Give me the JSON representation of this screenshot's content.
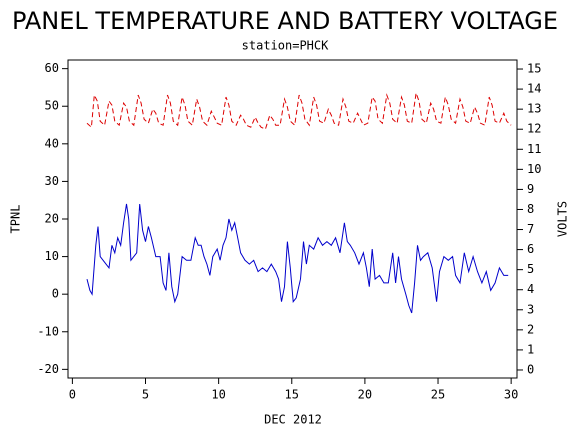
{
  "chart_data": {
    "type": "line",
    "title": "PANEL TEMPERATURE AND BATTERY VOLTAGE",
    "subtitle": "station=PHCK",
    "x_label": "DEC 2012",
    "y_label": "TPNL",
    "y2_label": "VOLTS",
    "xlim": [
      -0.3,
      30.4
    ],
    "xticks": [
      0,
      5,
      10,
      15,
      20,
      25,
      30
    ],
    "ylim": [
      -22.3,
      62.3
    ],
    "yticks": [
      -20,
      -10,
      0,
      10,
      20,
      30,
      40,
      50,
      60
    ],
    "y2lim": [
      -0.4,
      15.45
    ],
    "y2ticks": [
      0,
      1,
      2,
      3,
      4,
      5,
      6,
      7,
      8,
      9,
      10,
      11,
      12,
      13,
      14,
      15
    ],
    "series": [
      {
        "name": "TPNL",
        "color": "#0000cc",
        "dashed": false,
        "x": [
          1.0,
          1.2,
          1.35,
          1.6,
          1.75,
          1.9,
          2.1,
          2.3,
          2.5,
          2.7,
          2.9,
          3.1,
          3.3,
          3.5,
          3.7,
          3.85,
          4.0,
          4.2,
          4.4,
          4.6,
          4.8,
          5.0,
          5.2,
          5.4,
          5.7,
          6.0,
          6.2,
          6.4,
          6.6,
          6.8,
          7.0,
          7.2,
          7.5,
          7.8,
          8.1,
          8.4,
          8.6,
          8.8,
          9.0,
          9.2,
          9.4,
          9.6,
          9.9,
          10.1,
          10.3,
          10.5,
          10.7,
          10.9,
          11.1,
          11.3,
          11.5,
          11.8,
          12.1,
          12.4,
          12.7,
          13.0,
          13.3,
          13.6,
          13.9,
          14.1,
          14.3,
          14.5,
          14.7,
          14.9,
          15.1,
          15.3,
          15.6,
          15.8,
          16.0,
          16.2,
          16.5,
          16.8,
          17.1,
          17.4,
          17.7,
          18.0,
          18.3,
          18.6,
          18.8,
          19.0,
          19.3,
          19.6,
          19.9,
          20.1,
          20.3,
          20.5,
          20.7,
          21.0,
          21.3,
          21.6,
          21.9,
          22.1,
          22.3,
          22.5,
          22.8,
          23.0,
          23.2,
          23.4,
          23.6,
          23.8,
          24.0,
          24.3,
          24.6,
          24.9,
          25.1,
          25.4,
          25.7,
          26.0,
          26.2,
          26.5,
          26.8,
          27.1,
          27.4,
          27.7,
          28.0,
          28.3,
          28.6,
          28.9,
          29.2,
          29.5,
          29.8
        ],
        "values": [
          4,
          1,
          0,
          13,
          18,
          10,
          9,
          8,
          7,
          13,
          11,
          15,
          13,
          19,
          24,
          20,
          9,
          10,
          11,
          24,
          17,
          14,
          18,
          15,
          10,
          10,
          3,
          1,
          11,
          2,
          -2,
          0,
          10,
          9,
          9,
          15,
          13,
          13,
          10,
          8,
          5,
          10,
          12,
          9,
          13,
          15,
          20,
          17,
          19,
          15,
          11,
          9,
          8,
          9,
          6,
          7,
          6,
          8,
          6,
          4,
          -2,
          2,
          14,
          7,
          -2,
          -1,
          4,
          14,
          8,
          13,
          12,
          15,
          13,
          14,
          13,
          15,
          11,
          19,
          14,
          13,
          11,
          8,
          11,
          7,
          2,
          12,
          4,
          5,
          3,
          3,
          11,
          3,
          10,
          4,
          0,
          -3,
          -5,
          3,
          13,
          9,
          10,
          11,
          7,
          -2,
          6,
          10,
          9,
          10,
          5,
          3,
          11,
          6,
          10,
          6,
          3,
          6,
          1,
          3,
          7,
          5,
          5
        ]
      },
      {
        "name": "VOLTS",
        "color": "#dd0000",
        "dashed": true,
        "axis": "y2",
        "x": [
          1.0,
          1.3,
          1.5,
          1.7,
          1.9,
          2.2,
          2.5,
          2.7,
          2.9,
          3.2,
          3.5,
          3.7,
          3.9,
          4.2,
          4.5,
          4.7,
          4.9,
          5.2,
          5.5,
          5.7,
          5.9,
          6.2,
          6.5,
          6.7,
          6.9,
          7.2,
          7.5,
          7.7,
          7.9,
          8.2,
          8.5,
          8.7,
          8.9,
          9.2,
          9.5,
          9.7,
          9.9,
          10.2,
          10.5,
          10.7,
          10.9,
          11.2,
          11.5,
          11.7,
          11.9,
          12.2,
          12.5,
          12.7,
          12.9,
          13.2,
          13.5,
          13.7,
          13.9,
          14.2,
          14.5,
          14.7,
          14.9,
          15.2,
          15.5,
          15.7,
          15.9,
          16.2,
          16.5,
          16.7,
          16.9,
          17.2,
          17.5,
          17.7,
          17.9,
          18.2,
          18.5,
          18.7,
          18.9,
          19.2,
          19.5,
          19.7,
          19.9,
          20.2,
          20.5,
          20.7,
          20.9,
          21.2,
          21.5,
          21.7,
          21.9,
          22.2,
          22.5,
          22.7,
          22.9,
          23.2,
          23.5,
          23.7,
          23.9,
          24.2,
          24.5,
          24.7,
          24.9,
          25.2,
          25.5,
          25.7,
          25.9,
          26.2,
          26.5,
          26.7,
          26.9,
          27.2,
          27.5,
          27.7,
          27.9,
          28.2,
          28.5,
          28.7,
          28.9,
          29.2,
          29.5,
          29.7,
          30.0
        ],
        "values": [
          12.3,
          12.1,
          13.7,
          13.4,
          12.4,
          12.2,
          13.4,
          13.2,
          12.4,
          12.2,
          13.3,
          13.1,
          12.4,
          12.2,
          13.7,
          13.3,
          12.5,
          12.3,
          13.0,
          12.8,
          12.3,
          12.2,
          13.7,
          13.3,
          12.4,
          12.2,
          13.6,
          13.2,
          12.4,
          12.2,
          13.5,
          13.1,
          12.4,
          12.2,
          12.9,
          12.6,
          12.3,
          12.2,
          13.6,
          13.2,
          12.4,
          12.2,
          12.7,
          12.5,
          12.2,
          12.1,
          12.6,
          12.3,
          12.1,
          12.0,
          12.7,
          12.5,
          12.2,
          12.2,
          13.5,
          13.1,
          12.4,
          12.2,
          13.7,
          13.3,
          12.5,
          12.2,
          13.6,
          13.2,
          12.4,
          12.3,
          13.0,
          12.7,
          12.3,
          12.2,
          13.5,
          13.1,
          12.4,
          12.3,
          12.8,
          12.5,
          12.2,
          12.3,
          13.6,
          13.4,
          12.5,
          12.3,
          13.7,
          13.3,
          12.5,
          12.3,
          13.6,
          13.2,
          12.4,
          12.3,
          13.8,
          13.4,
          12.5,
          12.3,
          13.3,
          13.0,
          12.4,
          12.3,
          13.6,
          13.2,
          12.5,
          12.3,
          13.5,
          13.1,
          12.4,
          12.3,
          13.1,
          12.8,
          12.3,
          12.2,
          13.6,
          13.2,
          12.4,
          12.3,
          12.8,
          12.4,
          12.2
        ]
      }
    ]
  }
}
